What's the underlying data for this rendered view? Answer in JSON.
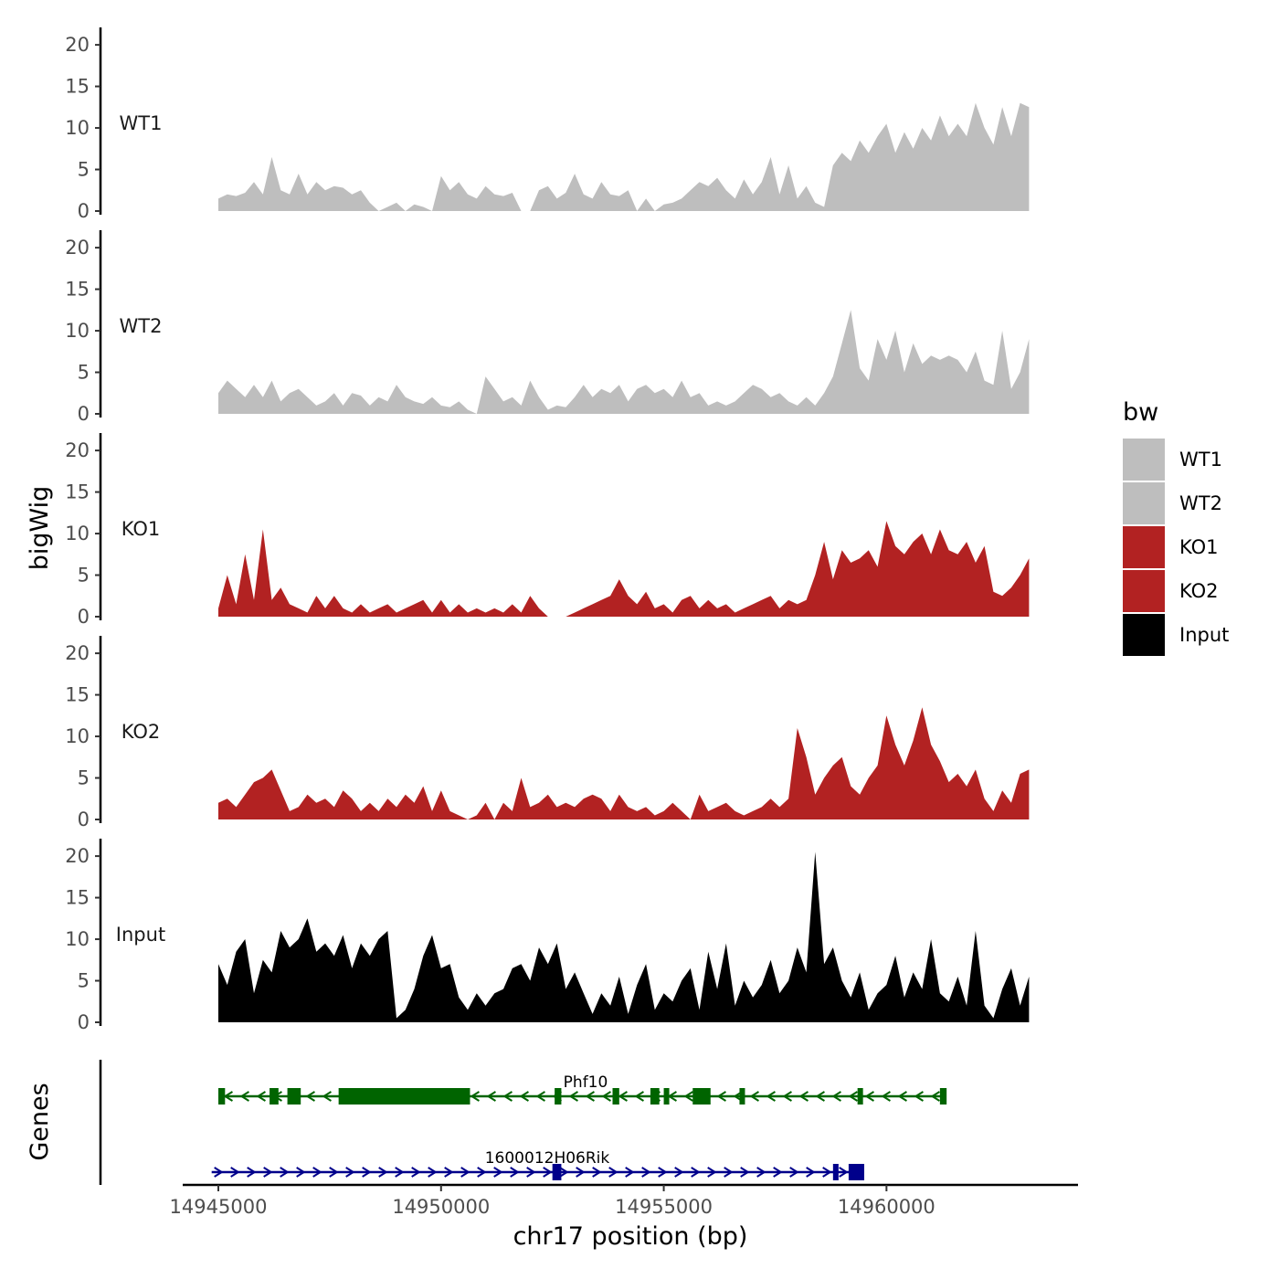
{
  "chart_data": {
    "type": "area",
    "y_axis_title": "bigWig",
    "x_axis_title": "chr17 position (bp)",
    "x_tick_labels": [
      "14945000",
      "14950000",
      "14955000",
      "14960000"
    ],
    "x_ticks": [
      14945000,
      14950000,
      14955000,
      14960000
    ],
    "xlim": [
      14944200,
      14964300
    ],
    "ylim": [
      0,
      21
    ],
    "y_ticks": [
      0,
      5,
      10,
      15,
      20
    ],
    "y_tick_labels": [
      "0",
      "5",
      "10",
      "15",
      "20"
    ],
    "tracks": [
      {
        "name": "WT1",
        "color": "#bebebe",
        "x": [
          14945000,
          14945200,
          14945400,
          14945600,
          14945800,
          14946000,
          14946200,
          14946400,
          14946600,
          14946800,
          14947000,
          14947200,
          14947400,
          14947600,
          14947800,
          14948000,
          14948200,
          14948400,
          14948600,
          14948800,
          14949000,
          14949200,
          14949400,
          14949600,
          14949800,
          14950000,
          14950200,
          14950400,
          14950600,
          14950800,
          14951000,
          14951200,
          14951400,
          14951600,
          14951800,
          14952000,
          14952200,
          14952400,
          14952600,
          14952800,
          14953000,
          14953200,
          14953400,
          14953600,
          14953800,
          14954000,
          14954200,
          14954400,
          14954600,
          14954800,
          14955000,
          14955200,
          14955400,
          14955600,
          14955800,
          14956000,
          14956200,
          14956400,
          14956600,
          14956800,
          14957000,
          14957200,
          14957400,
          14957600,
          14957800,
          14958000,
          14958200,
          14958400,
          14958600,
          14958800,
          14959000,
          14959200,
          14959400,
          14959600,
          14959800,
          14960000,
          14960200,
          14960400,
          14960600,
          14960800,
          14961000,
          14961200,
          14961400,
          14961600,
          14961800,
          14962000,
          14962200,
          14962400,
          14962600,
          14962800,
          14963000,
          14963200
        ],
        "values": [
          1.5,
          2.0,
          1.8,
          2.2,
          3.5,
          2.0,
          6.5,
          2.5,
          2.0,
          4.5,
          2.0,
          3.5,
          2.5,
          3.0,
          2.8,
          2.0,
          2.5,
          1.0,
          0.0,
          0.5,
          1.0,
          0.0,
          0.8,
          0.5,
          0.0,
          4.2,
          2.5,
          3.5,
          2.0,
          1.5,
          3.0,
          2.0,
          1.8,
          2.2,
          0.0,
          0.0,
          2.5,
          3.0,
          1.5,
          2.2,
          4.5,
          2.0,
          1.5,
          3.5,
          2.0,
          1.8,
          2.5,
          0.0,
          1.5,
          0.0,
          0.8,
          1.0,
          1.5,
          2.5,
          3.5,
          3.0,
          4.0,
          2.5,
          1.5,
          3.8,
          2.0,
          3.5,
          6.5,
          2.0,
          5.5,
          1.5,
          3.0,
          1.0,
          0.5,
          5.5,
          7.0,
          6.0,
          8.5,
          7.0,
          9.0,
          10.5,
          7.0,
          9.5,
          7.5,
          10.0,
          8.5,
          11.5,
          9.0,
          10.5,
          9.0,
          13.0,
          10.0,
          8.0,
          12.5,
          9.0,
          13.0,
          12.5
        ]
      },
      {
        "name": "WT2",
        "color": "#bebebe",
        "x": [
          14945000,
          14945200,
          14945400,
          14945600,
          14945800,
          14946000,
          14946200,
          14946400,
          14946600,
          14946800,
          14947000,
          14947200,
          14947400,
          14947600,
          14947800,
          14948000,
          14948200,
          14948400,
          14948600,
          14948800,
          14949000,
          14949200,
          14949400,
          14949600,
          14949800,
          14950000,
          14950200,
          14950400,
          14950600,
          14950800,
          14951000,
          14951200,
          14951400,
          14951600,
          14951800,
          14952000,
          14952200,
          14952400,
          14952600,
          14952800,
          14953000,
          14953200,
          14953400,
          14953600,
          14953800,
          14954000,
          14954200,
          14954400,
          14954600,
          14954800,
          14955000,
          14955200,
          14955400,
          14955600,
          14955800,
          14956000,
          14956200,
          14956400,
          14956600,
          14956800,
          14957000,
          14957200,
          14957400,
          14957600,
          14957800,
          14958000,
          14958200,
          14958400,
          14958600,
          14958800,
          14959000,
          14959200,
          14959400,
          14959600,
          14959800,
          14960000,
          14960200,
          14960400,
          14960600,
          14960800,
          14961000,
          14961200,
          14961400,
          14961600,
          14961800,
          14962000,
          14962200,
          14962400,
          14962600,
          14962800,
          14963000,
          14963200
        ],
        "values": [
          2.5,
          4.0,
          3.0,
          2.0,
          3.5,
          2.0,
          4.0,
          1.5,
          2.5,
          3.0,
          2.0,
          1.0,
          1.5,
          2.5,
          1.0,
          2.5,
          2.2,
          1.0,
          2.0,
          1.5,
          3.5,
          2.0,
          1.5,
          1.2,
          2.0,
          1.0,
          0.8,
          1.5,
          0.5,
          0.0,
          4.5,
          3.0,
          1.5,
          2.0,
          1.0,
          4.0,
          2.0,
          0.5,
          1.0,
          0.8,
          2.0,
          3.5,
          2.0,
          3.0,
          2.5,
          3.5,
          1.5,
          3.0,
          3.5,
          2.5,
          3.0,
          2.0,
          4.0,
          2.0,
          2.5,
          1.0,
          1.5,
          1.0,
          1.5,
          2.5,
          3.5,
          3.0,
          2.0,
          2.5,
          1.5,
          1.0,
          2.0,
          1.0,
          2.5,
          4.5,
          8.5,
          12.5,
          5.5,
          4.0,
          9.0,
          6.5,
          10.0,
          5.0,
          8.5,
          6.0,
          7.0,
          6.5,
          7.0,
          6.5,
          5.0,
          7.5,
          4.0,
          3.5,
          10.0,
          3.0,
          5.0,
          9.0
        ]
      },
      {
        "name": "KO1",
        "color": "#b22222",
        "x": [
          14945000,
          14945200,
          14945400,
          14945600,
          14945800,
          14946000,
          14946200,
          14946400,
          14946600,
          14946800,
          14947000,
          14947200,
          14947400,
          14947600,
          14947800,
          14948000,
          14948200,
          14948400,
          14948600,
          14948800,
          14949000,
          14949200,
          14949400,
          14949600,
          14949800,
          14950000,
          14950200,
          14950400,
          14950600,
          14950800,
          14951000,
          14951200,
          14951400,
          14951600,
          14951800,
          14952000,
          14952200,
          14952400,
          14952600,
          14952800,
          14953000,
          14953200,
          14953400,
          14953600,
          14953800,
          14954000,
          14954200,
          14954400,
          14954600,
          14954800,
          14955000,
          14955200,
          14955400,
          14955600,
          14955800,
          14956000,
          14956200,
          14956400,
          14956600,
          14956800,
          14957000,
          14957200,
          14957400,
          14957600,
          14957800,
          14958000,
          14958200,
          14958400,
          14958600,
          14958800,
          14959000,
          14959200,
          14959400,
          14959600,
          14959800,
          14960000,
          14960200,
          14960400,
          14960600,
          14960800,
          14961000,
          14961200,
          14961400,
          14961600,
          14961800,
          14962000,
          14962200,
          14962400,
          14962600,
          14962800,
          14963000,
          14963200
        ],
        "values": [
          1.0,
          5.0,
          1.5,
          7.5,
          2.0,
          10.5,
          2.0,
          3.5,
          1.5,
          1.0,
          0.5,
          2.5,
          1.0,
          2.5,
          1.0,
          0.5,
          1.5,
          0.5,
          1.0,
          1.5,
          0.5,
          1.0,
          1.5,
          2.0,
          0.5,
          2.0,
          0.5,
          1.5,
          0.5,
          1.0,
          0.5,
          1.0,
          0.5,
          1.5,
          0.5,
          2.5,
          1.0,
          0.0,
          0.0,
          0.0,
          0.5,
          1.0,
          1.5,
          2.0,
          2.5,
          4.5,
          2.5,
          1.5,
          3.0,
          1.0,
          1.5,
          0.5,
          2.0,
          2.5,
          1.0,
          2.0,
          1.0,
          1.5,
          0.5,
          1.0,
          1.5,
          2.0,
          2.5,
          1.0,
          2.0,
          1.5,
          2.0,
          5.0,
          9.0,
          4.5,
          8.0,
          6.5,
          7.0,
          8.0,
          6.0,
          11.5,
          8.5,
          7.5,
          9.0,
          10.0,
          7.5,
          10.5,
          8.0,
          7.5,
          9.0,
          6.5,
          8.5,
          3.0,
          2.5,
          3.5,
          5.0,
          7.0
        ]
      },
      {
        "name": "KO2",
        "color": "#b22222",
        "x": [
          14945000,
          14945200,
          14945400,
          14945600,
          14945800,
          14946000,
          14946200,
          14946400,
          14946600,
          14946800,
          14947000,
          14947200,
          14947400,
          14947600,
          14947800,
          14948000,
          14948200,
          14948400,
          14948600,
          14948800,
          14949000,
          14949200,
          14949400,
          14949600,
          14949800,
          14950000,
          14950200,
          14950400,
          14950600,
          14950800,
          14951000,
          14951200,
          14951400,
          14951600,
          14951800,
          14952000,
          14952200,
          14952400,
          14952600,
          14952800,
          14953000,
          14953200,
          14953400,
          14953600,
          14953800,
          14954000,
          14954200,
          14954400,
          14954600,
          14954800,
          14955000,
          14955200,
          14955400,
          14955600,
          14955800,
          14956000,
          14956200,
          14956400,
          14956600,
          14956800,
          14957000,
          14957200,
          14957400,
          14957600,
          14957800,
          14958000,
          14958200,
          14958400,
          14958600,
          14958800,
          14959000,
          14959200,
          14959400,
          14959600,
          14959800,
          14960000,
          14960200,
          14960400,
          14960600,
          14960800,
          14961000,
          14961200,
          14961400,
          14961600,
          14961800,
          14962000,
          14962200,
          14962400,
          14962600,
          14962800,
          14963000,
          14963200
        ],
        "values": [
          2.0,
          2.5,
          1.5,
          3.0,
          4.5,
          5.0,
          6.0,
          3.5,
          1.0,
          1.5,
          3.0,
          2.0,
          2.5,
          1.5,
          3.5,
          2.5,
          1.0,
          2.0,
          1.0,
          2.5,
          1.5,
          3.0,
          2.0,
          4.0,
          1.0,
          3.5,
          1.0,
          0.5,
          0.0,
          0.5,
          2.0,
          0.0,
          2.0,
          1.0,
          5.0,
          1.5,
          2.0,
          3.0,
          1.5,
          2.0,
          1.5,
          2.5,
          3.0,
          2.5,
          1.0,
          3.0,
          1.5,
          1.0,
          1.5,
          0.5,
          1.0,
          2.0,
          1.0,
          0.0,
          3.0,
          1.0,
          1.5,
          2.0,
          1.0,
          0.5,
          1.0,
          1.5,
          2.5,
          1.5,
          2.5,
          11.0,
          7.5,
          3.0,
          5.0,
          6.5,
          7.5,
          4.0,
          3.0,
          5.0,
          6.5,
          12.5,
          9.0,
          6.5,
          9.5,
          13.5,
          9.0,
          7.0,
          4.5,
          5.5,
          4.0,
          6.0,
          2.5,
          1.0,
          3.5,
          2.0,
          5.5,
          6.0
        ]
      },
      {
        "name": "Input",
        "color": "#000000",
        "x": [
          14945000,
          14945200,
          14945400,
          14945600,
          14945800,
          14946000,
          14946200,
          14946400,
          14946600,
          14946800,
          14947000,
          14947200,
          14947400,
          14947600,
          14947800,
          14948000,
          14948200,
          14948400,
          14948600,
          14948800,
          14949000,
          14949200,
          14949400,
          14949600,
          14949800,
          14950000,
          14950200,
          14950400,
          14950600,
          14950800,
          14951000,
          14951200,
          14951400,
          14951600,
          14951800,
          14952000,
          14952200,
          14952400,
          14952600,
          14952800,
          14953000,
          14953200,
          14953400,
          14953600,
          14953800,
          14954000,
          14954200,
          14954400,
          14954600,
          14954800,
          14955000,
          14955200,
          14955400,
          14955600,
          14955800,
          14956000,
          14956200,
          14956400,
          14956600,
          14956800,
          14957000,
          14957200,
          14957400,
          14957600,
          14957800,
          14958000,
          14958200,
          14958400,
          14958600,
          14958800,
          14959000,
          14959200,
          14959400,
          14959600,
          14959800,
          14960000,
          14960200,
          14960400,
          14960600,
          14960800,
          14961000,
          14961200,
          14961400,
          14961600,
          14961800,
          14962000,
          14962200,
          14962400,
          14962600,
          14962800,
          14963000,
          14963200
        ],
        "values": [
          7.0,
          4.5,
          8.5,
          10.0,
          3.5,
          7.5,
          6.0,
          11.0,
          9.0,
          10.0,
          12.5,
          8.5,
          9.5,
          8.0,
          10.5,
          6.5,
          9.5,
          8.0,
          10.0,
          11.0,
          0.5,
          1.5,
          4.0,
          8.0,
          10.5,
          6.5,
          7.0,
          3.0,
          1.5,
          3.5,
          2.0,
          3.5,
          4.0,
          6.5,
          7.0,
          5.0,
          9.0,
          7.0,
          9.5,
          4.0,
          6.0,
          3.5,
          1.0,
          3.5,
          2.0,
          5.5,
          1.0,
          4.5,
          7.0,
          1.5,
          3.5,
          2.5,
          5.0,
          6.5,
          1.5,
          8.5,
          4.0,
          9.5,
          2.0,
          5.0,
          3.0,
          4.5,
          7.5,
          3.5,
          5.0,
          9.0,
          6.0,
          20.5,
          7.0,
          9.0,
          5.0,
          3.0,
          6.0,
          1.5,
          3.5,
          4.5,
          8.0,
          3.0,
          6.0,
          4.0,
          10.0,
          3.5,
          2.5,
          5.5,
          2.0,
          11.0,
          2.0,
          0.5,
          4.0,
          6.5,
          2.0,
          5.5
        ]
      }
    ],
    "genes": [
      {
        "name": "Phf10",
        "strand": "-",
        "color": "#006400",
        "start": 14945050,
        "end": 14961300,
        "exons": [
          [
            14945000,
            14945150
          ],
          [
            14946150,
            14946350
          ],
          [
            14946550,
            14946850
          ],
          [
            14947700,
            14950650
          ],
          [
            14952550,
            14952700
          ],
          [
            14953850,
            14954000
          ],
          [
            14954700,
            14954900
          ],
          [
            14955000,
            14955100
          ],
          [
            14955650,
            14956050
          ],
          [
            14956700,
            14956820
          ],
          [
            14959350,
            14959450
          ],
          [
            14961200,
            14961350
          ]
        ]
      },
      {
        "name": "1600012H06Rik",
        "strand": "+",
        "color": "#00008b",
        "start": 14944850,
        "end": 14959500,
        "exons": [
          [
            14952500,
            14952700
          ],
          [
            14958800,
            14958870
          ],
          [
            14959150,
            14959500
          ]
        ]
      }
    ],
    "legend": {
      "title": "bw",
      "entries": [
        {
          "label": "WT1",
          "color": "#bebebe"
        },
        {
          "label": "WT2",
          "color": "#bebebe"
        },
        {
          "label": "KO1",
          "color": "#b22222"
        },
        {
          "label": "KO2",
          "color": "#b22222"
        },
        {
          "label": "Input",
          "color": "#000000"
        }
      ]
    }
  }
}
